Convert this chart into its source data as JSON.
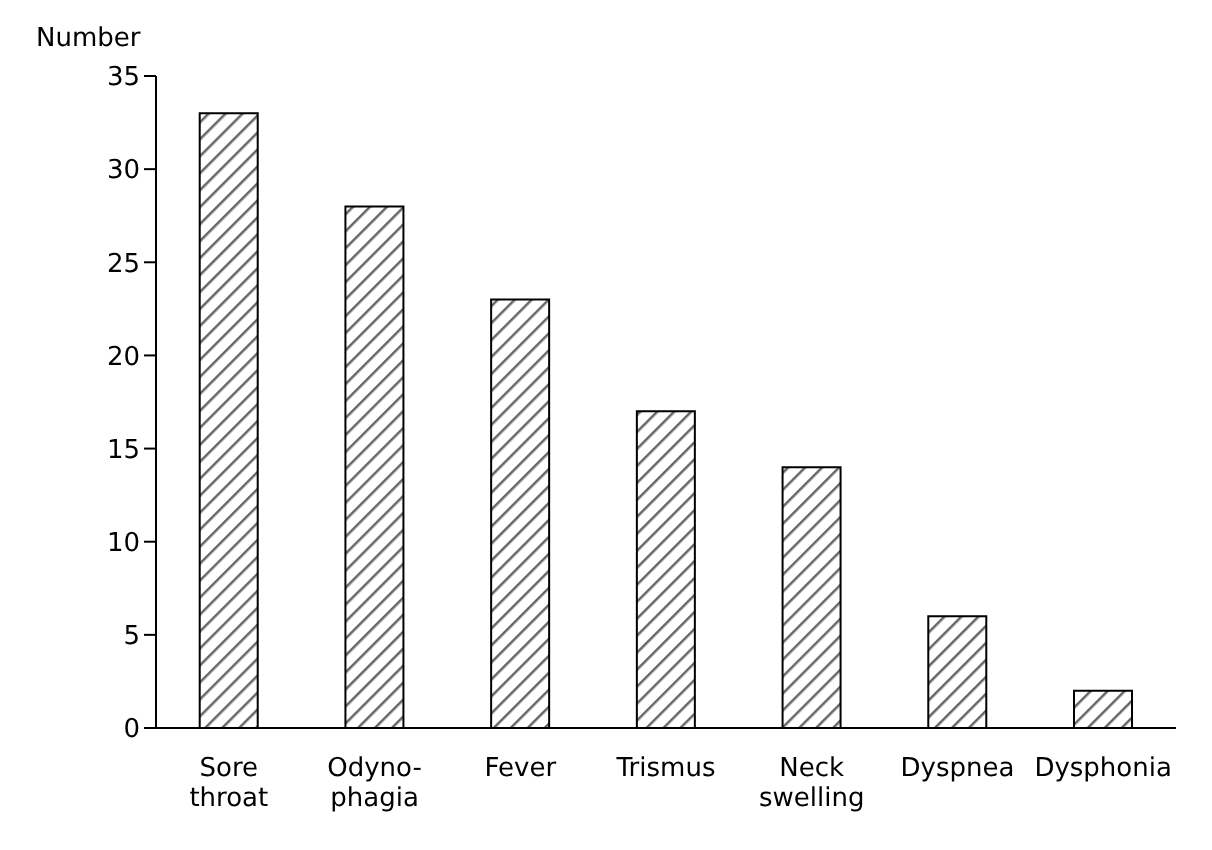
{
  "chart_data": {
    "type": "bar",
    "ylabel": "Number",
    "categories": [
      "Sore\nthroat",
      "Odyno-\nphagia",
      "Fever",
      "Trismus",
      "Neck\nswelling",
      "Dyspnea",
      "Dysphonia"
    ],
    "values": [
      33,
      28,
      23,
      17,
      14,
      6,
      2
    ],
    "color": "#000000",
    "ylim": [
      0,
      35
    ],
    "yticks": [
      0,
      5,
      10,
      15,
      20,
      25,
      30,
      35
    ],
    "grid": false
  }
}
